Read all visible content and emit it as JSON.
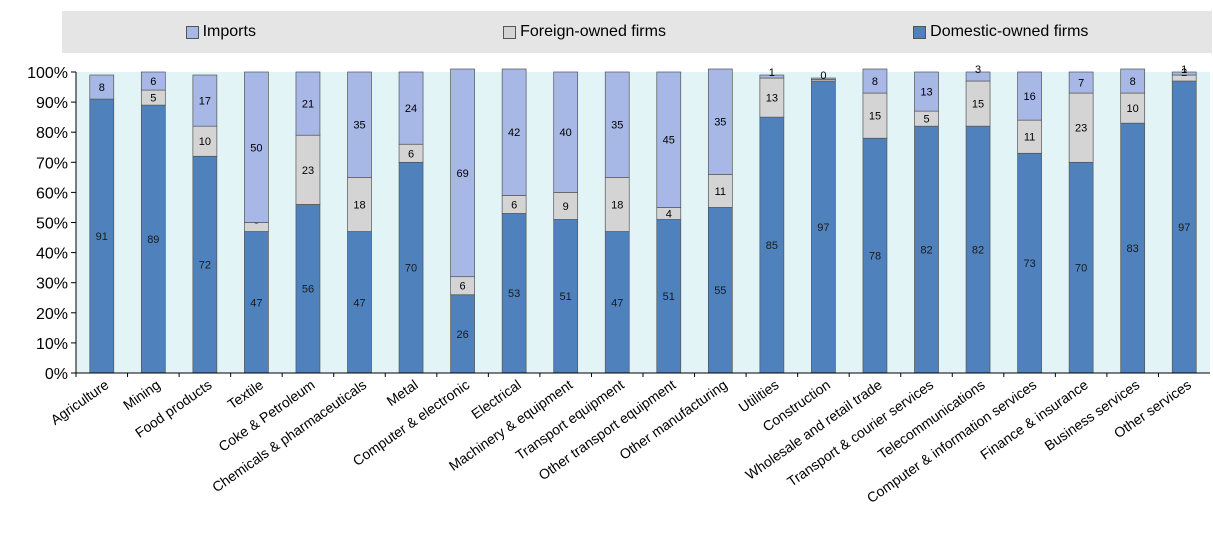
{
  "chart_data": {
    "type": "bar",
    "stacked": true,
    "categories": [
      "Agriculture",
      "Mining",
      "Food products",
      "Textile",
      "Coke & Petroleum",
      "Chemicals & pharmaceuticals",
      "Metal",
      "Computer & electronic",
      "Electrical",
      "Machinery & equipment",
      "Transport equipment",
      "Other transport equipment",
      "Other manufacturing",
      "Utilities",
      "Construction",
      "Wholesale and retail trade",
      "Transport & courier services",
      "Telecommunications",
      "Computer & information services",
      "Finance & insurance",
      "Business services",
      "Other services"
    ],
    "series": [
      {
        "name": "Domestic-owned firms",
        "color": "#4f81bd",
        "values": [
          91,
          89,
          72,
          47,
          56,
          47,
          70,
          26,
          53,
          51,
          47,
          51,
          55,
          85,
          97,
          78,
          82,
          82,
          73,
          70,
          83,
          97
        ],
        "labels": [
          "91",
          "89",
          "72",
          "47",
          "56",
          "47",
          "70",
          "26",
          "53",
          "51",
          "47",
          "51",
          "55",
          "85",
          "97",
          "78",
          "82",
          "82",
          "73",
          "70",
          "83",
          "97"
        ]
      },
      {
        "name": "Foreign-owned firms",
        "color": "#d4d4d4",
        "values": [
          0,
          5,
          10,
          3,
          23,
          18,
          6,
          6,
          6,
          9,
          18,
          4,
          11,
          13,
          0.5,
          15,
          5,
          15,
          11,
          23,
          10,
          2
        ],
        "labels": [
          "",
          "5",
          "10",
          "3",
          "23",
          "18",
          "6",
          "6",
          "6",
          "9",
          "18",
          "4",
          "11",
          "13",
          "",
          "15",
          "5",
          "15",
          "11",
          "23",
          "10",
          "2"
        ]
      },
      {
        "name": "Imports",
        "color": "#a7b7e6",
        "values": [
          8,
          6,
          17,
          50,
          21,
          35,
          24,
          69,
          42,
          40,
          35,
          45,
          35,
          1,
          0.5,
          8,
          13,
          3,
          16,
          7,
          8,
          1
        ],
        "labels": [
          "8",
          "6",
          "17",
          "50",
          "21",
          "35",
          "24",
          "69",
          "42",
          "40",
          "35",
          "45",
          "35",
          "1",
          "0",
          "8",
          "13",
          "3",
          "16",
          "7",
          "8",
          "1"
        ]
      }
    ],
    "legend_order": [
      "Imports",
      "Foreign-owned firms",
      "Domestic-owned firms"
    ],
    "yticks": [
      "0%",
      "10%",
      "20%",
      "30%",
      "40%",
      "50%",
      "60%",
      "70%",
      "80%",
      "90%",
      "100%"
    ],
    "ylim": [
      0,
      100
    ],
    "legend_position": "top",
    "background_color": "#e3f4f7",
    "grid": false
  }
}
